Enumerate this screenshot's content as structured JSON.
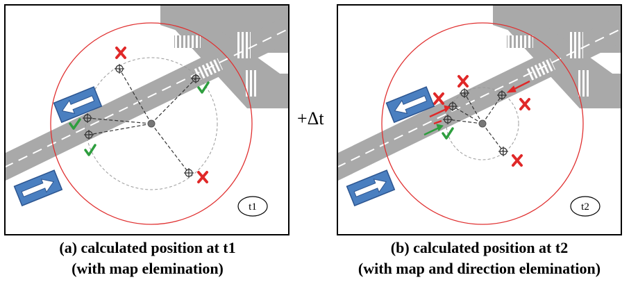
{
  "panels": [
    {
      "id": "a",
      "time_label": "t1",
      "caption_line1": "(a) calculated position at t1",
      "caption_line2": "(with map elemination)"
    },
    {
      "id": "b",
      "time_label": "t2",
      "caption_line1": "(b) calculated position at t2",
      "caption_line2": "(with map and direction elemination)"
    }
  ],
  "delta_label": "+Δt",
  "colors": {
    "road": "#a9a9a9",
    "search_circle": "#e03030",
    "accept_check": "#2e9e3e",
    "reject_cross": "#e02828",
    "arrow_sign": "#4a7fc0",
    "direction_arrow_red": "#e02828",
    "direction_arrow_green": "#2e9e3e"
  },
  "icons": [
    "check-icon",
    "cross-icon",
    "target-icon",
    "arrow-sign-icon"
  ]
}
